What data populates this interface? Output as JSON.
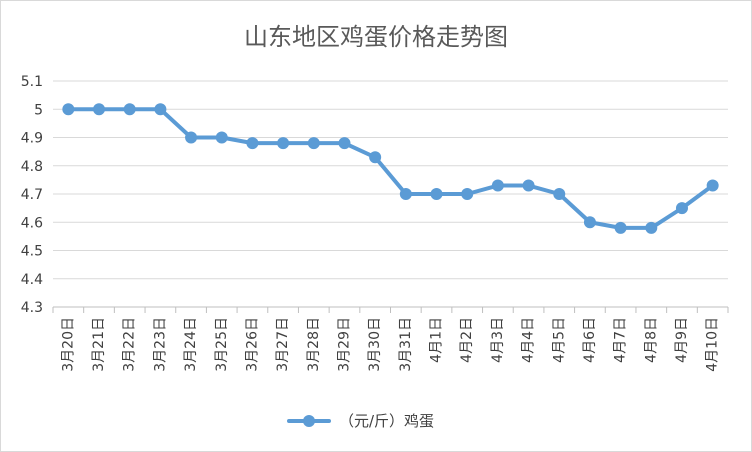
{
  "chart_data": {
    "type": "line",
    "title": "山东地区鸡蛋价格走势图",
    "categories": [
      "3月20日",
      "3月21日",
      "3月22日",
      "3月23日",
      "3月24日",
      "3月25日",
      "3月26日",
      "3月27日",
      "3月28日",
      "3月29日",
      "3月30日",
      "3月31日",
      "4月1日",
      "4月2日",
      "4月3日",
      "4月4日",
      "4月5日",
      "4月6日",
      "4月7日",
      "4月8日",
      "4月9日",
      "4月10日"
    ],
    "series": [
      {
        "name": "（元/斤）鸡蛋",
        "color": "#5b9bd5",
        "values": [
          5.0,
          5.0,
          5.0,
          5.0,
          4.9,
          4.9,
          4.88,
          4.88,
          4.88,
          4.88,
          4.83,
          4.7,
          4.7,
          4.7,
          4.73,
          4.73,
          4.7,
          4.6,
          4.58,
          4.58,
          4.65,
          4.73
        ]
      }
    ],
    "yticks": [
      "4.3",
      "4.4",
      "4.5",
      "4.6",
      "4.7",
      "4.8",
      "4.9",
      "5",
      "5.1"
    ],
    "ylim": [
      4.3,
      5.1
    ],
    "xlabel": "",
    "ylabel": "",
    "grid": true,
    "legend": "bottom-center"
  }
}
